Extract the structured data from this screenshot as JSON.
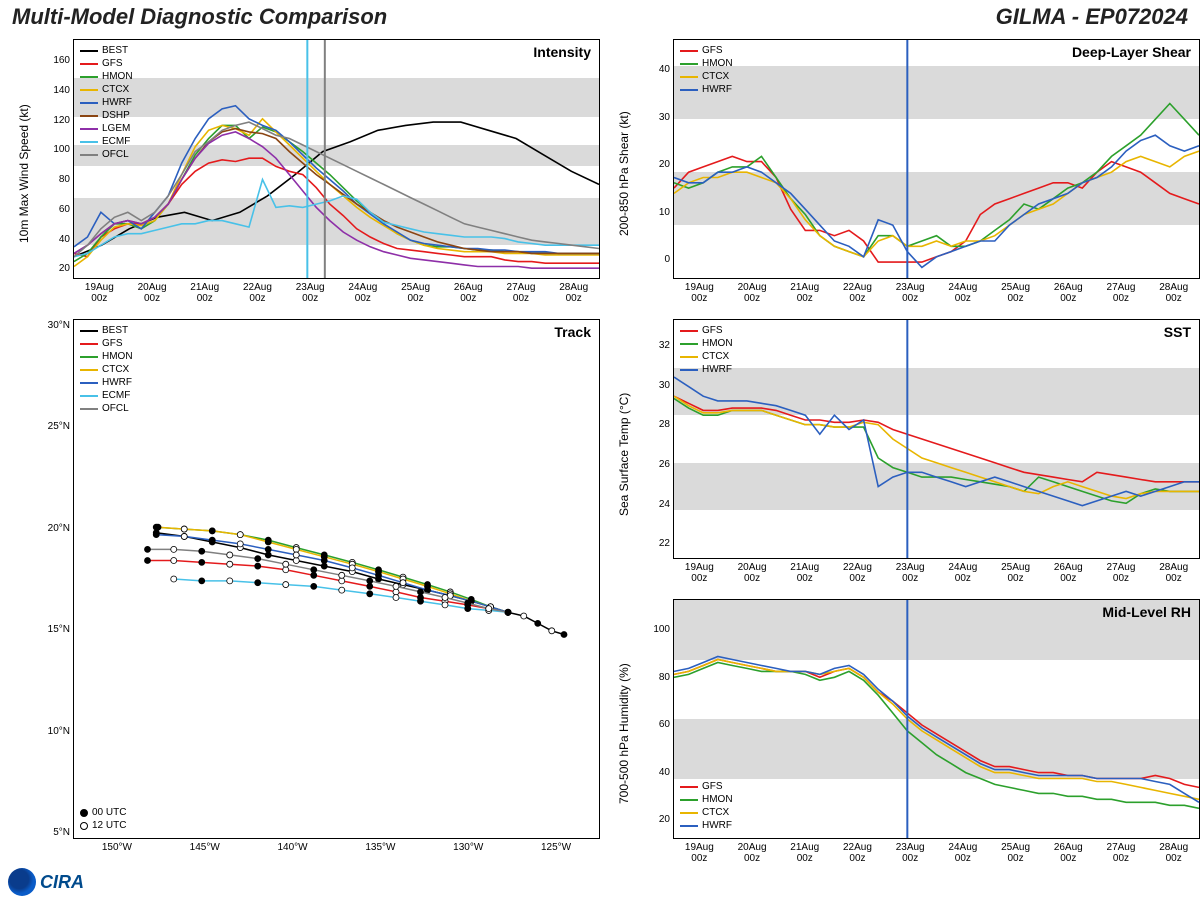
{
  "header": {
    "title": "Multi-Model Diagnostic Comparison",
    "storm_id": "GILMA - EP072024"
  },
  "colors": {
    "BEST": "#000000",
    "GFS": "#e41a1c",
    "HMON": "#2ca02c",
    "CTCX": "#e8b500",
    "HWRF": "#2b5fbf",
    "DSHP": "#8b4513",
    "LGEM": "#8e2fa8",
    "ECMF": "#48c1e8",
    "OFCL": "#808080",
    "band": "#DADADA",
    "bg": "#ffffff",
    "grid_border": "#000000",
    "now_line_cyan": "#48c1e8",
    "now_line_gray": "#808080",
    "now_line_blue": "#2b5fbf"
  },
  "x_dates": [
    "19Aug\n00z",
    "20Aug\n00z",
    "21Aug\n00z",
    "22Aug\n00z",
    "23Aug\n00z",
    "24Aug\n00z",
    "25Aug\n00z",
    "26Aug\n00z",
    "27Aug\n00z",
    "28Aug\n00z"
  ],
  "intensity": {
    "label": "Intensity",
    "ylabel": "10m Max Wind Speed (kt)",
    "ylim": [
      15,
      160
    ],
    "ytick_step": 20,
    "yticks": [
      20,
      40,
      60,
      80,
      100,
      120,
      140,
      160
    ],
    "bands": [
      [
        35,
        64
      ],
      [
        83,
        96
      ],
      [
        113,
        137
      ]
    ],
    "now_x_cyan": 4.0,
    "now_x_gray": 4.3,
    "legend": [
      "BEST",
      "GFS",
      "HMON",
      "CTCX",
      "HWRF",
      "DSHP",
      "LGEM",
      "ECMF",
      "OFCL"
    ],
    "series": {
      "BEST": [
        28,
        35,
        45,
        52,
        55,
        50,
        55,
        65,
        78,
        92,
        98,
        105,
        108,
        110,
        110,
        105,
        100,
        90,
        80,
        72
      ],
      "GFS": [
        30,
        28,
        40,
        45,
        48,
        48,
        52,
        60,
        72,
        80,
        85,
        87,
        86,
        88,
        88,
        83,
        80,
        78,
        70,
        60,
        53,
        45,
        40,
        36,
        33,
        32,
        31,
        30,
        29,
        28,
        28,
        28,
        26,
        25,
        25,
        24,
        24,
        24,
        24,
        24
      ],
      "HMON": [
        25,
        30,
        40,
        48,
        48,
        45,
        50,
        60,
        75,
        90,
        100,
        108,
        108,
        100,
        107,
        104,
        98,
        92,
        85,
        78,
        70,
        62,
        55,
        48,
        42,
        38,
        35,
        34,
        34,
        33,
        32,
        32,
        31,
        31,
        30,
        30,
        30,
        30,
        30,
        30
      ],
      "CTCX": [
        22,
        28,
        38,
        46,
        48,
        47,
        50,
        60,
        78,
        95,
        105,
        108,
        106,
        102,
        112,
        104,
        96,
        88,
        80,
        72,
        65,
        58,
        52,
        47,
        42,
        38,
        35,
        33,
        32,
        31,
        31,
        31,
        30,
        30,
        30,
        29,
        29,
        29,
        29,
        29
      ],
      "HWRF": [
        34,
        40,
        55,
        48,
        50,
        45,
        55,
        65,
        85,
        100,
        112,
        118,
        120,
        112,
        108,
        105,
        98,
        90,
        82,
        75,
        68,
        60,
        54,
        48,
        43,
        38,
        36,
        35,
        34,
        33,
        33,
        32,
        32,
        31,
        31,
        31,
        30,
        30,
        30,
        30
      ],
      "DSHP": [
        30,
        35,
        42,
        48,
        50,
        48,
        52,
        60,
        75,
        88,
        98,
        104,
        106,
        104,
        103,
        100,
        92,
        85,
        78,
        72,
        66,
        60,
        55,
        50,
        46,
        43,
        40,
        37,
        35,
        33,
        32,
        31,
        31,
        31,
        30,
        30,
        30,
        30,
        30,
        30
      ],
      "LGEM": [
        30,
        35,
        42,
        48,
        50,
        48,
        52,
        60,
        75,
        88,
        97,
        102,
        104,
        100,
        95,
        88,
        78,
        68,
        58,
        50,
        43,
        38,
        34,
        31,
        29,
        27,
        26,
        25,
        24,
        23,
        22,
        22,
        22,
        22,
        21,
        21,
        21,
        21,
        21,
        21
      ],
      "ECMF": [
        28,
        30,
        35,
        40,
        42,
        42,
        44,
        46,
        48,
        48,
        50,
        50,
        48,
        46,
        75,
        58,
        59,
        58,
        60,
        62,
        65,
        63,
        55,
        49,
        47,
        45,
        43,
        42,
        41,
        40,
        40,
        40,
        39,
        37,
        36,
        35,
        35,
        35,
        35,
        35
      ],
      "OFCL": [
        28,
        35,
        45,
        52,
        55,
        50,
        55,
        65,
        78,
        92,
        98,
        105,
        108,
        110,
        106,
        102,
        100,
        96,
        92,
        88,
        84,
        80,
        76,
        72,
        68,
        64,
        60,
        56,
        52,
        48,
        46,
        44,
        42,
        40,
        38,
        37,
        36,
        35,
        34,
        33
      ]
    }
  },
  "shear": {
    "label": "Deep-Layer Shear",
    "ylabel": "200-850 hPa Shear (kt)",
    "ylim": [
      0,
      45
    ],
    "yticks": [
      0,
      10,
      20,
      30,
      40
    ],
    "bands": [
      [
        10,
        20
      ],
      [
        30,
        40
      ]
    ],
    "now_x": 4.0,
    "legend": [
      "GFS",
      "HMON",
      "CTCX",
      "HWRF"
    ],
    "series": {
      "GFS": [
        17,
        20,
        21,
        22,
        23,
        22,
        22,
        19,
        13,
        9,
        9,
        8,
        9,
        7,
        3,
        3,
        3,
        3,
        4,
        5,
        7,
        12,
        14,
        15,
        16,
        17,
        18,
        18,
        17,
        20,
        22,
        21,
        20,
        18,
        16,
        15,
        14
      ],
      "HMON": [
        18,
        17,
        18,
        20,
        21,
        21,
        23,
        19,
        15,
        12,
        8,
        6,
        5,
        4,
        8,
        8,
        6,
        7,
        8,
        6,
        6,
        7,
        9,
        11,
        14,
        13,
        15,
        17,
        18,
        20,
        23,
        25,
        27,
        30,
        33,
        30,
        27
      ],
      "CTCX": [
        16,
        18,
        19,
        19,
        20,
        20,
        19,
        18,
        15,
        11,
        8,
        6,
        5,
        4,
        7,
        8,
        6,
        6,
        7,
        6,
        7,
        7,
        8,
        10,
        12,
        13,
        14,
        16,
        18,
        19,
        20,
        22,
        23,
        22,
        21,
        23,
        24
      ],
      "HWRF": [
        19,
        18,
        18,
        20,
        20,
        21,
        20,
        18,
        16,
        13,
        10,
        7,
        6,
        4,
        11,
        10,
        5,
        2,
        4,
        5,
        6,
        7,
        7,
        10,
        12,
        14,
        15,
        16,
        18,
        19,
        21,
        24,
        26,
        27,
        25,
        24,
        25
      ]
    }
  },
  "sst": {
    "label": "SST",
    "ylabel": "Sea Surface Temp (°C)",
    "ylim": [
      22,
      32
    ],
    "yticks": [
      22,
      24,
      26,
      28,
      30,
      32
    ],
    "bands": [
      [
        24,
        26
      ],
      [
        28,
        30
      ]
    ],
    "now_x": 4.0,
    "legend": [
      "GFS",
      "HMON",
      "CTCX",
      "HWRF"
    ],
    "series": {
      "GFS": [
        28.8,
        28.5,
        28.2,
        28.2,
        28.3,
        28.3,
        28.3,
        28.2,
        28.0,
        27.8,
        27.8,
        27.7,
        27.7,
        27.8,
        27.7,
        27.4,
        27.2,
        27.0,
        26.8,
        26.6,
        26.4,
        26.2,
        26.0,
        25.8,
        25.6,
        25.5,
        25.4,
        25.3,
        25.2,
        25.6,
        25.5,
        25.4,
        25.3,
        25.2,
        25.2,
        25.2,
        25.2
      ],
      "HMON": [
        28.7,
        28.3,
        28.0,
        28.0,
        28.2,
        28.2,
        28.2,
        28.0,
        27.8,
        27.6,
        27.6,
        27.5,
        27.5,
        27.5,
        26.2,
        25.8,
        25.6,
        25.4,
        25.4,
        25.4,
        25.3,
        25.2,
        25.1,
        25.0,
        24.8,
        25.4,
        25.2,
        25.0,
        24.8,
        24.6,
        24.4,
        24.3,
        24.7,
        24.9,
        24.8,
        24.8,
        24.8
      ],
      "CTCX": [
        28.8,
        28.4,
        28.1,
        28.1,
        28.2,
        28.2,
        28.2,
        28.0,
        27.8,
        27.6,
        27.6,
        27.5,
        27.5,
        27.7,
        27.6,
        27.0,
        26.6,
        26.2,
        26.0,
        25.8,
        25.6,
        25.4,
        25.2,
        25.0,
        24.8,
        24.7,
        25.0,
        25.2,
        25.0,
        24.8,
        24.6,
        24.5,
        24.7,
        24.8,
        24.8,
        24.8,
        24.8
      ],
      "HWRF": [
        29.6,
        29.2,
        28.8,
        28.6,
        28.6,
        28.6,
        28.5,
        28.4,
        28.2,
        28.0,
        27.2,
        28.0,
        27.4,
        27.8,
        25.0,
        25.4,
        25.6,
        25.6,
        25.4,
        25.2,
        25.0,
        25.2,
        25.4,
        25.2,
        25.0,
        24.8,
        24.6,
        24.4,
        24.2,
        24.4,
        24.6,
        24.8,
        24.6,
        24.8,
        25.0,
        25.2,
        25.2
      ]
    }
  },
  "rh": {
    "label": "Mid-Level RH",
    "ylabel": "700-500 hPa Humidity (%)",
    "ylim": [
      20,
      100
    ],
    "yticks": [
      20,
      40,
      60,
      80,
      100
    ],
    "bands": [
      [
        40,
        60
      ],
      [
        80,
        100
      ]
    ],
    "now_x": 4.0,
    "legend": [
      "GFS",
      "HMON",
      "CTCX",
      "HWRF"
    ],
    "series": {
      "GFS": [
        75,
        76,
        78,
        80,
        79,
        78,
        77,
        76,
        76,
        76,
        74,
        76,
        77,
        74,
        69,
        66,
        62,
        58,
        55,
        52,
        49,
        46,
        44,
        44,
        43,
        42,
        42,
        41,
        41,
        40,
        40,
        40,
        40,
        41,
        40,
        38,
        37
      ],
      "HMON": [
        74,
        75,
        77,
        79,
        78,
        77,
        76,
        76,
        76,
        75,
        73,
        74,
        76,
        73,
        68,
        62,
        56,
        52,
        48,
        45,
        42,
        40,
        38,
        37,
        36,
        35,
        35,
        34,
        34,
        33,
        33,
        32,
        32,
        32,
        31,
        31,
        30
      ],
      "CTCX": [
        75,
        76,
        78,
        80,
        79,
        78,
        77,
        76,
        76,
        76,
        75,
        76,
        77,
        74,
        69,
        65,
        60,
        56,
        53,
        50,
        47,
        44,
        42,
        42,
        41,
        40,
        40,
        40,
        40,
        39,
        39,
        38,
        37,
        36,
        35,
        34,
        33
      ],
      "HWRF": [
        76,
        77,
        79,
        81,
        80,
        79,
        78,
        77,
        76,
        76,
        75,
        77,
        78,
        75,
        70,
        66,
        61,
        57,
        54,
        51,
        48,
        45,
        43,
        43,
        42,
        41,
        41,
        41,
        41,
        40,
        40,
        40,
        40,
        39,
        38,
        35,
        32
      ]
    },
    "legend_pos": "bottom-left"
  },
  "track": {
    "label": "Track",
    "ylabel": "",
    "xlim": [
      -150,
      -120
    ],
    "xticks": [
      "150°W",
      "145°W",
      "140°W",
      "135°W",
      "130°W",
      "125°W"
    ],
    "ylim": [
      5,
      33
    ],
    "yticks": [
      "5°N",
      "10°N",
      "15°N",
      "20°N",
      "25°N",
      "30°N"
    ],
    "legend": [
      "BEST",
      "GFS",
      "HMON",
      "CTCX",
      "HWRF",
      "ECMF",
      "OFCL"
    ],
    "marker_legend": [
      [
        "00 UTC",
        "filled"
      ],
      [
        "12 UTC",
        "open"
      ]
    ],
    "series": {
      "BEST": [
        [
          -122,
          16.0
        ],
        [
          -122.7,
          16.2
        ],
        [
          -123.5,
          16.6
        ],
        [
          -124.3,
          17.0
        ],
        [
          -125.2,
          17.2
        ],
        [
          -126.2,
          17.5
        ],
        [
          -127.3,
          17.8
        ],
        [
          -128.5,
          18.1
        ],
        [
          -129.8,
          18.4
        ],
        [
          -131.2,
          18.7
        ],
        [
          -132.6,
          19.0
        ],
        [
          -134.1,
          19.4
        ],
        [
          -135.7,
          19.7
        ],
        [
          -137.3,
          20.0
        ],
        [
          -138.9,
          20.3
        ],
        [
          -140.5,
          20.7
        ],
        [
          -142.1,
          21.0
        ],
        [
          -143.7,
          21.3
        ],
        [
          -145.3,
          21.5
        ]
      ],
      "GFS": [
        [
          -125.2,
          17.2
        ],
        [
          -126.3,
          17.4
        ],
        [
          -127.5,
          17.6
        ],
        [
          -128.8,
          17.8
        ],
        [
          -130.2,
          18.0
        ],
        [
          -131.6,
          18.3
        ],
        [
          -133.1,
          18.6
        ],
        [
          -134.7,
          18.9
        ],
        [
          -136.3,
          19.2
        ],
        [
          -137.9,
          19.5
        ],
        [
          -139.5,
          19.7
        ],
        [
          -141.1,
          19.8
        ],
        [
          -142.7,
          19.9
        ],
        [
          -144.3,
          20.0
        ],
        [
          -145.8,
          20.0
        ]
      ],
      "HMON": [
        [
          -125.2,
          17.2
        ],
        [
          -126.2,
          17.5
        ],
        [
          -127.3,
          17.9
        ],
        [
          -128.5,
          18.3
        ],
        [
          -129.8,
          18.7
        ],
        [
          -131.2,
          19.1
        ],
        [
          -132.6,
          19.5
        ],
        [
          -134.1,
          19.9
        ],
        [
          -135.7,
          20.3
        ],
        [
          -137.3,
          20.7
        ],
        [
          -138.9,
          21.1
        ],
        [
          -140.5,
          21.4
        ],
        [
          -142.1,
          21.6
        ],
        [
          -143.7,
          21.7
        ],
        [
          -145.3,
          21.8
        ]
      ],
      "CTCX": [
        [
          -125.2,
          17.2
        ],
        [
          -126.2,
          17.5
        ],
        [
          -127.3,
          17.8
        ],
        [
          -128.5,
          18.2
        ],
        [
          -129.8,
          18.6
        ],
        [
          -131.2,
          19.0
        ],
        [
          -132.6,
          19.4
        ],
        [
          -134.1,
          19.8
        ],
        [
          -135.7,
          20.2
        ],
        [
          -137.3,
          20.6
        ],
        [
          -138.9,
          21.0
        ],
        [
          -140.5,
          21.4
        ],
        [
          -142.1,
          21.6
        ],
        [
          -143.7,
          21.7
        ],
        [
          -145.2,
          21.8
        ]
      ],
      "HWRF": [
        [
          -125.2,
          17.2
        ],
        [
          -126.2,
          17.5
        ],
        [
          -127.3,
          17.8
        ],
        [
          -128.5,
          18.1
        ],
        [
          -129.8,
          18.4
        ],
        [
          -131.2,
          18.8
        ],
        [
          -132.6,
          19.2
        ],
        [
          -134.1,
          19.6
        ],
        [
          -135.7,
          20.0
        ],
        [
          -137.3,
          20.3
        ],
        [
          -138.9,
          20.6
        ],
        [
          -140.5,
          20.9
        ],
        [
          -142.1,
          21.1
        ],
        [
          -143.7,
          21.3
        ],
        [
          -145.3,
          21.4
        ]
      ],
      "ECMF": [
        [
          -125.2,
          17.2
        ],
        [
          -126.3,
          17.3
        ],
        [
          -127.5,
          17.4
        ],
        [
          -128.8,
          17.6
        ],
        [
          -130.2,
          17.8
        ],
        [
          -131.6,
          18.0
        ],
        [
          -133.1,
          18.2
        ],
        [
          -134.7,
          18.4
        ],
        [
          -136.3,
          18.6
        ],
        [
          -137.9,
          18.7
        ],
        [
          -139.5,
          18.8
        ],
        [
          -141.1,
          18.9
        ],
        [
          -142.7,
          18.9
        ],
        [
          -144.3,
          19.0
        ]
      ],
      "OFCL": [
        [
          -125.2,
          17.2
        ],
        [
          -126.3,
          17.4
        ],
        [
          -127.5,
          17.7
        ],
        [
          -128.8,
          18.0
        ],
        [
          -130.2,
          18.3
        ],
        [
          -131.6,
          18.6
        ],
        [
          -133.1,
          18.9
        ],
        [
          -134.7,
          19.2
        ],
        [
          -136.3,
          19.5
        ],
        [
          -137.9,
          19.8
        ],
        [
          -139.5,
          20.1
        ],
        [
          -141.1,
          20.3
        ],
        [
          -142.7,
          20.5
        ],
        [
          -144.3,
          20.6
        ],
        [
          -145.8,
          20.6
        ]
      ]
    }
  },
  "footer": {
    "logo_text": "CIRA"
  }
}
